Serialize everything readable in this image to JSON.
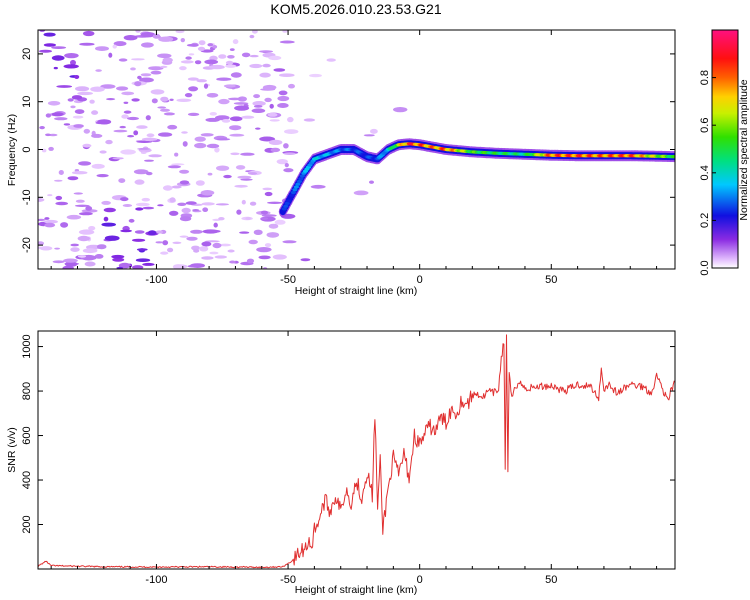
{
  "title": "KOM5.2026.010.23.53.G21",
  "chart_data": [
    {
      "type": "heatmap",
      "name": "spectrogram",
      "xlabel": "Height of straight line (km)",
      "ylabel": "Frequency (Hz)",
      "xlim": [
        -145,
        97
      ],
      "ylim": [
        -25,
        25
      ],
      "xticks": [
        -100,
        -50,
        0,
        50
      ],
      "yticks": [
        -20,
        -10,
        0,
        10,
        20
      ],
      "colorbar": {
        "label": "Normalized spectral amplitude",
        "range": [
          0,
          1
        ],
        "ticks": [
          0.0,
          0.2,
          0.4,
          0.6,
          0.8
        ],
        "tick_labels": [
          "0.0",
          "0.2",
          "0.4",
          "0.6",
          "0.8"
        ],
        "colormap": "rainbow (white -> violet -> blue -> cyan -> green -> yellow -> red -> magenta)"
      },
      "ridge": {
        "description": "high-amplitude frequency track; left of about -50 km only scattered low-amplitude noise",
        "x": [
          -52,
          -48,
          -44,
          -40,
          -35,
          -30,
          -25,
          -20,
          -16,
          -12,
          -8,
          -4,
          0,
          5,
          10,
          20,
          30,
          40,
          50,
          60,
          70,
          80,
          90,
          97
        ],
        "y": [
          -13,
          -9,
          -5,
          -2,
          -1,
          0,
          0,
          -1.5,
          -2,
          0,
          1,
          1.2,
          1,
          0.5,
          0,
          -0.5,
          -0.8,
          -1,
          -1.2,
          -1.3,
          -1.3,
          -1.3,
          -1.4,
          -1.5
        ],
        "amplitude": [
          0.25,
          0.3,
          0.35,
          0.4,
          0.38,
          0.32,
          0.3,
          0.28,
          0.3,
          0.4,
          0.7,
          0.95,
          0.9,
          0.85,
          0.9,
          0.6,
          0.55,
          0.5,
          0.9,
          0.92,
          0.88,
          0.92,
          0.7,
          0.55
        ]
      }
    },
    {
      "type": "line",
      "name": "snr",
      "xlabel": "Height of straight line (km)",
      "ylabel": "SNR (v/v)",
      "xlim": [
        -145,
        97
      ],
      "ylim": [
        0,
        1070
      ],
      "xticks": [
        -100,
        -50,
        0,
        50
      ],
      "yticks": [
        200,
        400,
        600,
        800,
        1000
      ],
      "color": "#e03030",
      "series": [
        {
          "name": "SNR",
          "x": [
            -145,
            -142,
            -140,
            -120,
            -100,
            -80,
            -60,
            -52,
            -48,
            -45,
            -43,
            -42,
            -41,
            -40,
            -38,
            -36,
            -34,
            -32,
            -30,
            -28,
            -26,
            -24,
            -22,
            -20,
            -18,
            -17,
            -16,
            -15,
            -14,
            -12,
            -10,
            -8,
            -6,
            -4,
            -2,
            0,
            2,
            4,
            6,
            8,
            10,
            12,
            14,
            16,
            18,
            20,
            22,
            24,
            26,
            28,
            30,
            31,
            32,
            32.5,
            33,
            33.5,
            34,
            35,
            36,
            38,
            40,
            45,
            50,
            55,
            60,
            65,
            68,
            69,
            70,
            72,
            75,
            80,
            85,
            88,
            90,
            92,
            94,
            97
          ],
          "y": [
            12,
            35,
            15,
            10,
            9,
            10,
            8,
            10,
            40,
            80,
            100,
            140,
            90,
            180,
            230,
            310,
            260,
            330,
            260,
            360,
            300,
            400,
            320,
            440,
            330,
            700,
            270,
            480,
            180,
            360,
            500,
            420,
            520,
            410,
            600,
            560,
            610,
            640,
            620,
            680,
            660,
            720,
            700,
            760,
            740,
            780,
            790,
            770,
            800,
            790,
            810,
            950,
            1020,
            450,
            1060,
            430,
            880,
            760,
            820,
            840,
            810,
            820,
            825,
            800,
            830,
            820,
            770,
            900,
            810,
            830,
            790,
            830,
            820,
            790,
            870,
            820,
            760,
            840
          ]
        }
      ]
    }
  ]
}
